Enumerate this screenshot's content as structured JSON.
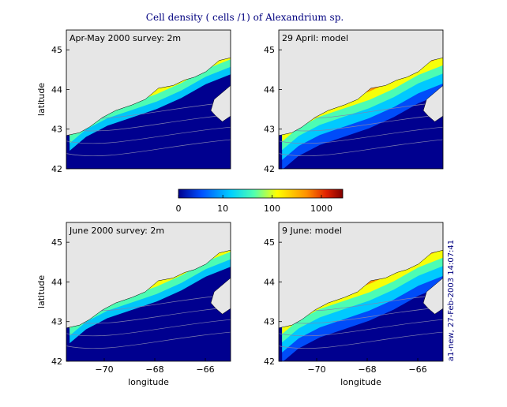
{
  "figure": {
    "title": "Cell density ( cells /1) of Alexandrium sp.",
    "stamp": "a1-new, 27-Feb-2003 14:07:41"
  },
  "colorbar": {
    "ticks": [
      "0",
      "10",
      "100",
      "1000"
    ],
    "colors": [
      "#00008f",
      "#0050ff",
      "#00d0ff",
      "#50ffb0",
      "#ffff00",
      "#ff9000",
      "#e02000",
      "#800000"
    ]
  },
  "colors": {
    "land": "#e6e6e6",
    "deep_water": "#00008f",
    "bathymetry_contour": "#8080b0",
    "text": "#000000",
    "title": "#00007f"
  },
  "chart_data": [
    {
      "type": "heatmap",
      "title": "Apr-May 2000 survey: 2m",
      "xlabel": "",
      "ylabel": "latitude",
      "xlim": [
        -71.5,
        -65.0
      ],
      "ylim": [
        42,
        45.5
      ],
      "xticks": [],
      "yticks": [
        "42",
        "43",
        "44",
        "45"
      ],
      "grid": false
    },
    {
      "type": "heatmap",
      "title": "29 April: model",
      "xlabel": "",
      "ylabel": "",
      "xlim": [
        -71.5,
        -65.0
      ],
      "ylim": [
        42,
        45.5
      ],
      "xticks": [],
      "yticks": [
        "42",
        "43",
        "44",
        "45"
      ],
      "grid": false
    },
    {
      "type": "heatmap",
      "title": "June 2000 survey: 2m",
      "xlabel": "longitude",
      "ylabel": "latitude",
      "xlim": [
        -71.5,
        -65.0
      ],
      "ylim": [
        42,
        45.5
      ],
      "xticks": [
        "−70",
        "−68",
        "−66"
      ],
      "yticks": [
        "42",
        "43",
        "44",
        "45"
      ],
      "grid": false
    },
    {
      "type": "heatmap",
      "title": "9 June: model",
      "xlabel": "longitude",
      "ylabel": "",
      "xlim": [
        -71.5,
        -65.0
      ],
      "ylim": [
        42,
        45.5
      ],
      "xticks": [
        "−70",
        "−68",
        "−66"
      ],
      "yticks": [
        "42",
        "43",
        "44",
        "45"
      ],
      "grid": false
    }
  ]
}
